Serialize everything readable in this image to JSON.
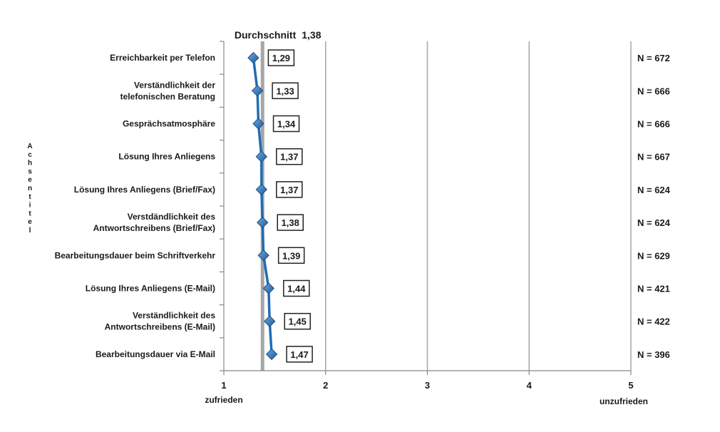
{
  "chart_data": {
    "type": "line",
    "orientation": "horizontal",
    "categories": [
      [
        "Erreichbarkeit per Telefon"
      ],
      [
        "Verständlichkeit der",
        "telefonischen Beratung"
      ],
      [
        "Gesprächsatmosphäre"
      ],
      [
        "Lösung Ihres Anliegens"
      ],
      [
        "Lösung Ihres Anliegens (Brief/Fax)"
      ],
      [
        "Verstdändlichkeit des",
        "Antwortschreibens (Brief/Fax)"
      ],
      [
        "Bearbeitungsdauer beim Schriftverkehr"
      ],
      [
        "Lösung Ihres Anliegens (E-Mail)"
      ],
      [
        "Verständlichkeit des",
        "Antwortschreibens (E-Mail)"
      ],
      [
        "Bearbeitungsdauer via E-Mail"
      ]
    ],
    "values": [
      1.29,
      1.33,
      1.34,
      1.37,
      1.37,
      1.38,
      1.39,
      1.44,
      1.45,
      1.47
    ],
    "value_labels": [
      "1,29",
      "1,33",
      "1,34",
      "1,37",
      "1,37",
      "1,38",
      "1,39",
      "1,44",
      "1,45",
      "1,47"
    ],
    "n_labels": [
      "N = 672",
      "N = 666",
      "N = 666",
      "N = 667",
      "N = 624",
      "N = 624",
      "N = 629",
      "N = 421",
      "N = 422",
      "N = 396"
    ],
    "average": {
      "value": 1.38,
      "label": "Durchschnitt",
      "value_label": "1,38"
    },
    "xlim": [
      1,
      5
    ],
    "xticks": [
      1,
      2,
      3,
      4,
      5
    ],
    "xtick_labels": [
      "1",
      "2",
      "3",
      "4",
      "5"
    ],
    "x_min_label": "zufrieden",
    "x_max_label": "unzufrieden",
    "ylabel": "Achsentitel",
    "grid": "vertical",
    "colors": {
      "line": "#1f6db5",
      "marker": "#2a72b8",
      "average": "#a6a6a6",
      "grid": "#a6a6a6"
    }
  }
}
